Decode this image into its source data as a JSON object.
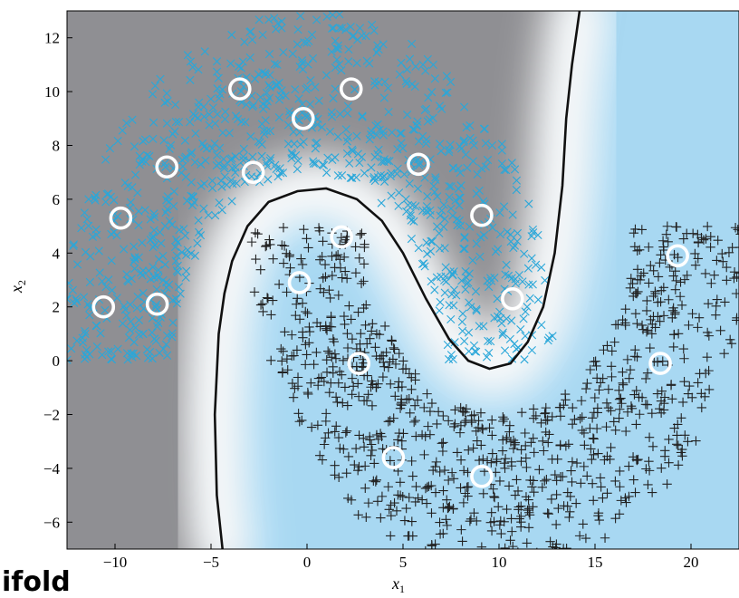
{
  "caption": "ifold",
  "chart_data": {
    "type": "scatter",
    "xlabel": "x",
    "xlabel_sub": "1",
    "ylabel": "x",
    "ylabel_sub": "2",
    "xlim": [
      -12.5,
      22.5
    ],
    "ylim": [
      -7,
      13
    ],
    "xticks": [
      -10,
      -5,
      0,
      5,
      10,
      15,
      20
    ],
    "yticks": [
      -6,
      -4,
      -2,
      0,
      2,
      4,
      6,
      8,
      10,
      12
    ],
    "xtick_labels": [
      "−10",
      "−5",
      "0",
      "5",
      "10",
      "15",
      "20"
    ],
    "ytick_labels": [
      "−6",
      "−4",
      "−2",
      "0",
      "2",
      "4",
      "6",
      "8",
      "10",
      "12"
    ],
    "grid": false,
    "series": [
      {
        "marker": "x",
        "color": "#2aa7d9",
        "region": "upper moon",
        "center": [
          0,
          0
        ],
        "radius": 10,
        "width": 6,
        "angle_range_deg": [
          0,
          180
        ],
        "count": 900
      },
      {
        "marker": "+",
        "color": "#222222",
        "region": "lower moon",
        "center": [
          10,
          5
        ],
        "radius": 10,
        "width": 6,
        "angle_range_deg": [
          180,
          360
        ],
        "count": 900
      }
    ],
    "support_vectors": {
      "marker": "o",
      "color": "#ffffff",
      "points": [
        [
          -10.6,
          2.0
        ],
        [
          -7.8,
          2.1
        ],
        [
          -9.7,
          5.3
        ],
        [
          -7.3,
          7.2
        ],
        [
          -3.5,
          10.1
        ],
        [
          -2.8,
          7.0
        ],
        [
          -0.2,
          9.0
        ],
        [
          2.3,
          10.1
        ],
        [
          5.8,
          7.3
        ],
        [
          9.1,
          5.4
        ],
        [
          10.7,
          2.3
        ],
        [
          1.8,
          4.6
        ],
        [
          -0.4,
          2.9
        ],
        [
          2.7,
          -0.1
        ],
        [
          4.5,
          -3.6
        ],
        [
          9.1,
          -4.3
        ],
        [
          18.4,
          -0.1
        ],
        [
          19.3,
          3.9
        ]
      ]
    },
    "decision_boundary": {
      "color": "#111111",
      "points": [
        [
          -4.4,
          -7.0
        ],
        [
          -4.7,
          -5.0
        ],
        [
          -4.8,
          -2.0
        ],
        [
          -4.6,
          1.0
        ],
        [
          -4.3,
          2.5
        ],
        [
          -3.9,
          3.7
        ],
        [
          -3.1,
          5.0
        ],
        [
          -2.0,
          5.9
        ],
        [
          -0.5,
          6.3
        ],
        [
          1.0,
          6.4
        ],
        [
          2.6,
          6.0
        ],
        [
          3.9,
          5.2
        ],
        [
          5.0,
          4.0
        ],
        [
          6.2,
          2.3
        ],
        [
          7.4,
          0.8
        ],
        [
          8.4,
          0.0
        ],
        [
          9.5,
          -0.3
        ],
        [
          10.6,
          -0.1
        ],
        [
          11.5,
          0.7
        ],
        [
          12.3,
          2.0
        ],
        [
          12.9,
          4.0
        ],
        [
          13.3,
          6.5
        ],
        [
          13.5,
          9.0
        ],
        [
          13.8,
          11.0
        ],
        [
          14.2,
          13.0
        ]
      ]
    },
    "background": {
      "upper_side": "#8f8f93",
      "lower_side": "#a8d8f2",
      "boundary": "#ffffff"
    }
  }
}
